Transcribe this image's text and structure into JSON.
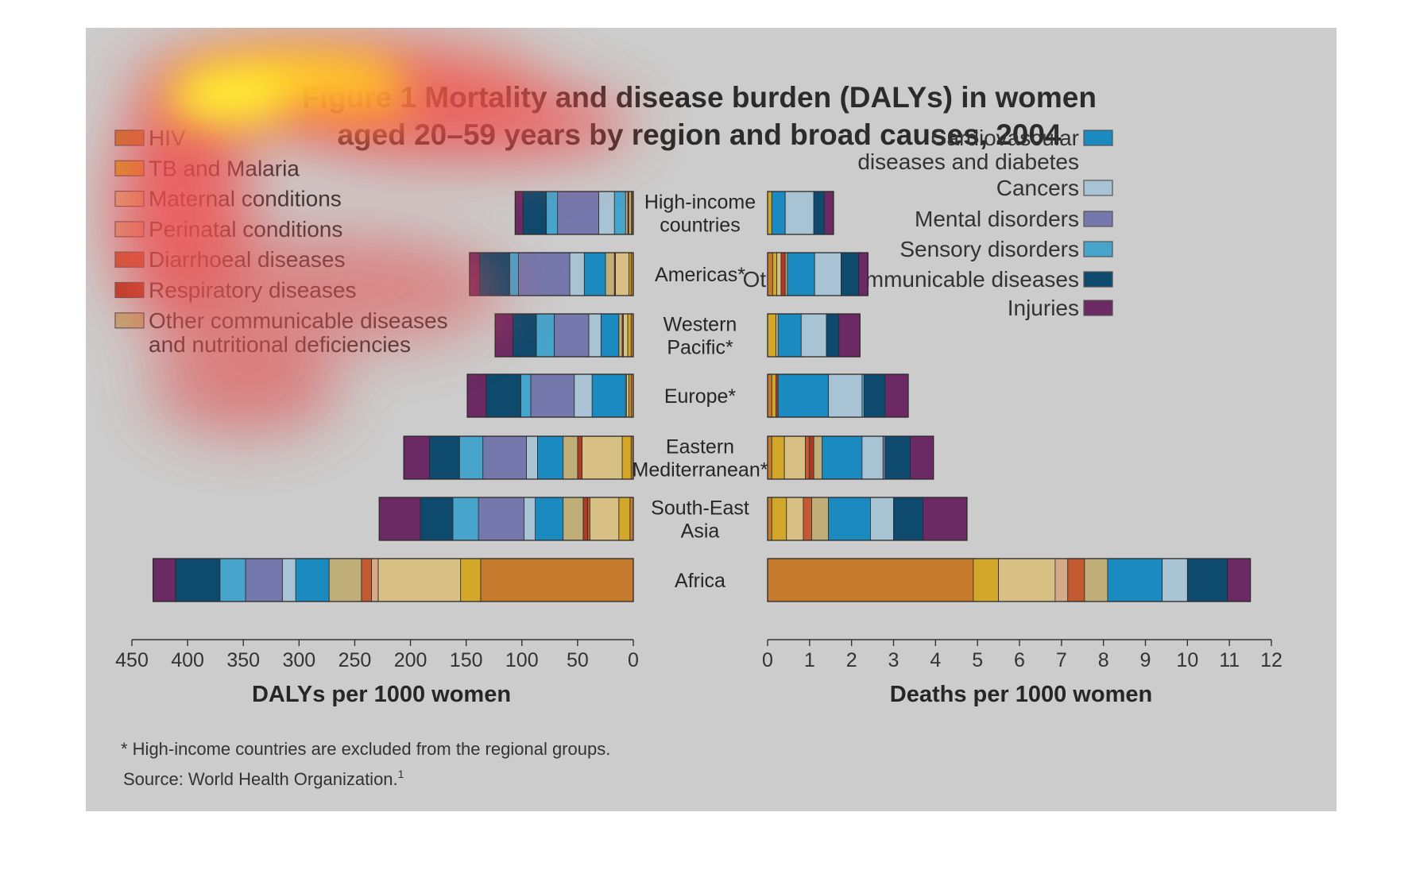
{
  "title_line1": "Figure 1 Mortality and disease burden (DALYs) in women",
  "title_line2": "aged 20–59 years by region and broad causes, 2004",
  "footnote": "* High-income countries are excluded from the regional groups.",
  "source": "Source: World Health Organization.",
  "source_sup": "1",
  "legend_left": [
    {
      "label": [
        "HIV"
      ],
      "color": "#c57a2e"
    },
    {
      "label": [
        "TB and Malaria"
      ],
      "color": "#d3a82a"
    },
    {
      "label": [
        "Maternal conditions"
      ],
      "color": "#d8bf84"
    },
    {
      "label": [
        "Perinatal conditions"
      ],
      "color": "#d4aa88"
    },
    {
      "label": [
        "Diarrhoeal diseases"
      ],
      "color": "#c45a32"
    },
    {
      "label": [
        "Respiratory diseases"
      ],
      "color": "#b03b22"
    },
    {
      "label": [
        "Other communicable diseases",
        "and nutritional deficiencies"
      ],
      "color": "#bfae78"
    }
  ],
  "legend_right": [
    {
      "label": [
        "Cardiovascular",
        "diseases and diabetes"
      ],
      "color": "#1a8ac0"
    },
    {
      "label": [
        "Cancers"
      ],
      "color": "#a8c3d3"
    },
    {
      "label": [
        "Mental disorders"
      ],
      "color": "#7478ad"
    },
    {
      "label": [
        "Sensory disorders"
      ],
      "color": "#47a4cb"
    },
    {
      "label": [
        "Other noncommunicable diseases"
      ],
      "color": "#0e4a6d"
    },
    {
      "label": [
        "Injuries"
      ],
      "color": "#6b2a63"
    }
  ],
  "chart_data": {
    "type": "bar",
    "orientation": "horizontal",
    "stacked": true,
    "layout": "back-to-back",
    "categories": [
      [
        "High-income",
        "countries"
      ],
      [
        "Americas*"
      ],
      [
        "Western",
        "Pacific*"
      ],
      [
        "Europe*"
      ],
      [
        "Eastern",
        "Mediterranean*"
      ],
      [
        "South-East",
        "Asia"
      ],
      [
        "Africa"
      ]
    ],
    "series_names": [
      "HIV",
      "TB and Malaria",
      "Maternal conditions",
      "Perinatal conditions",
      "Diarrhoeal diseases",
      "Respiratory diseases",
      "Other communicable diseases and nutritional deficiencies",
      "Cardiovascular diseases and diabetes",
      "Cancers",
      "Mental disorders",
      "Sensory disorders",
      "Other noncommunicable diseases",
      "Injuries"
    ],
    "panels": [
      {
        "xlabel": "DALYs per 1000 women",
        "xlim": [
          0,
          450
        ],
        "direction": "right-to-left",
        "ticks": [
          0,
          50,
          100,
          150,
          200,
          250,
          300,
          350,
          400,
          450
        ],
        "segments": [
          [
            {
              "series": "HIV",
              "value": 1
            },
            {
              "series": "TB and Malaria",
              "value": 1
            },
            {
              "series": "Maternal conditions",
              "value": 2
            },
            {
              "series": "Respiratory diseases",
              "value": 1
            },
            {
              "series": "Other communicable diseases and nutritional deficiencies",
              "value": 2
            },
            {
              "series": "Sensory disorders",
              "value": 10
            },
            {
              "series": "Cancers",
              "value": 14
            },
            {
              "series": "Mental disorders",
              "value": 37
            },
            {
              "series": "Sensory disorders",
              "value": 10
            },
            {
              "series": "Other noncommunicable diseases",
              "value": 21
            },
            {
              "series": "Injuries",
              "value": 7
            }
          ],
          [
            {
              "series": "HIV",
              "value": 2
            },
            {
              "series": "TB and Malaria",
              "value": 2
            },
            {
              "series": "Maternal conditions",
              "value": 12
            },
            {
              "series": "Respiratory diseases",
              "value": 1
            },
            {
              "series": "Other communicable diseases and nutritional deficiencies",
              "value": 8
            },
            {
              "series": "Cardiovascular diseases and diabetes",
              "value": 19
            },
            {
              "series": "Cancers",
              "value": 13
            },
            {
              "series": "Mental disorders",
              "value": 46
            },
            {
              "series": "Sensory disorders",
              "value": 8
            },
            {
              "series": "Other noncommunicable diseases",
              "value": 27
            },
            {
              "series": "Injuries",
              "value": 9
            }
          ],
          [
            {
              "series": "HIV",
              "value": 2
            },
            {
              "series": "TB and Malaria",
              "value": 3
            },
            {
              "series": "Maternal conditions",
              "value": 4
            },
            {
              "series": "Respiratory diseases",
              "value": 1
            },
            {
              "series": "Other communicable diseases and nutritional deficiencies",
              "value": 3
            },
            {
              "series": "Cardiovascular diseases and diabetes",
              "value": 16
            },
            {
              "series": "Cancers",
              "value": 11
            },
            {
              "series": "Mental disorders",
              "value": 31
            },
            {
              "series": "Sensory disorders",
              "value": 16
            },
            {
              "series": "Other noncommunicable diseases",
              "value": 21
            },
            {
              "series": "Injuries",
              "value": 16
            }
          ],
          [
            {
              "series": "HIV",
              "value": 2
            },
            {
              "series": "TB and Malaria",
              "value": 2
            },
            {
              "series": "Maternal conditions",
              "value": 2
            },
            {
              "series": "Other communicable diseases and nutritional deficiencies",
              "value": 1
            },
            {
              "series": "Cardiovascular diseases and diabetes",
              "value": 30
            },
            {
              "series": "Cancers",
              "value": 16
            },
            {
              "series": "Mental disorders",
              "value": 39
            },
            {
              "series": "Sensory disorders",
              "value": 9
            },
            {
              "series": "Other noncommunicable diseases",
              "value": 31
            },
            {
              "series": "Injuries",
              "value": 17
            }
          ],
          [
            {
              "series": "HIV",
              "value": 2
            },
            {
              "series": "TB and Malaria",
              "value": 8
            },
            {
              "series": "Maternal conditions",
              "value": 36
            },
            {
              "series": "Respiratory diseases",
              "value": 4
            },
            {
              "series": "Other communicable diseases and nutritional deficiencies",
              "value": 13
            },
            {
              "series": "Cardiovascular diseases and diabetes",
              "value": 23
            },
            {
              "series": "Cancers",
              "value": 10
            },
            {
              "series": "Mental disorders",
              "value": 39
            },
            {
              "series": "Sensory disorders",
              "value": 21
            },
            {
              "series": "Other noncommunicable diseases",
              "value": 27
            },
            {
              "series": "Injuries",
              "value": 23
            }
          ],
          [
            {
              "series": "HIV",
              "value": 3
            },
            {
              "series": "TB and Malaria",
              "value": 10
            },
            {
              "series": "Maternal conditions",
              "value": 26
            },
            {
              "series": "Diarrhoeal diseases",
              "value": 2
            },
            {
              "series": "Respiratory diseases",
              "value": 4
            },
            {
              "series": "Other communicable diseases and nutritional deficiencies",
              "value": 18
            },
            {
              "series": "Cardiovascular diseases and diabetes",
              "value": 25
            },
            {
              "series": "Cancers",
              "value": 10
            },
            {
              "series": "Mental disorders",
              "value": 41
            },
            {
              "series": "Sensory disorders",
              "value": 23
            },
            {
              "series": "Other noncommunicable diseases",
              "value": 29
            },
            {
              "series": "Injuries",
              "value": 37
            }
          ],
          [
            {
              "series": "HIV",
              "value": 137
            },
            {
              "series": "TB and Malaria",
              "value": 18
            },
            {
              "series": "Maternal conditions",
              "value": 74
            },
            {
              "series": "Perinatal conditions",
              "value": 6
            },
            {
              "series": "Diarrhoeal diseases",
              "value": 9
            },
            {
              "series": "Other communicable diseases and nutritional deficiencies",
              "value": 29
            },
            {
              "series": "Cardiovascular diseases and diabetes",
              "value": 30
            },
            {
              "series": "Cancers",
              "value": 12
            },
            {
              "series": "Mental disorders",
              "value": 33
            },
            {
              "series": "Sensory disorders",
              "value": 23
            },
            {
              "series": "Other noncommunicable diseases",
              "value": 40
            },
            {
              "series": "Injuries",
              "value": 20
            }
          ]
        ]
      },
      {
        "xlabel": "Deaths per 1000 women",
        "xlim": [
          0,
          12
        ],
        "direction": "left-to-right",
        "ticks": [
          0,
          1,
          2,
          3,
          4,
          5,
          6,
          7,
          8,
          9,
          10,
          11,
          12
        ],
        "segments": [
          [
            {
              "series": "TB and Malaria",
              "value": 0.1
            },
            {
              "series": "Cardiovascular diseases and diabetes",
              "value": 0.32
            },
            {
              "series": "Cancers",
              "value": 0.68
            },
            {
              "series": "Other noncommunicable diseases",
              "value": 0.25
            },
            {
              "series": "Injuries",
              "value": 0.22
            }
          ],
          [
            {
              "series": "HIV",
              "value": 0.12
            },
            {
              "series": "TB and Malaria",
              "value": 0.1
            },
            {
              "series": "Maternal conditions",
              "value": 0.1
            },
            {
              "series": "Respiratory diseases",
              "value": 0.1
            },
            {
              "series": "Other communicable diseases and nutritional deficiencies",
              "value": 0.05
            },
            {
              "series": "Cardiovascular diseases and diabetes",
              "value": 0.65
            },
            {
              "series": "Cancers",
              "value": 0.63
            },
            {
              "series": "Other noncommunicable diseases",
              "value": 0.42
            },
            {
              "series": "Injuries",
              "value": 0.22
            }
          ],
          [
            {
              "series": "TB and Malaria",
              "value": 0.2
            },
            {
              "series": "Maternal conditions",
              "value": 0.05
            },
            {
              "series": "Cardiovascular diseases and diabetes",
              "value": 0.55
            },
            {
              "series": "Cancers",
              "value": 0.6
            },
            {
              "series": "Other noncommunicable diseases",
              "value": 0.3
            },
            {
              "series": "Injuries",
              "value": 0.5
            }
          ],
          [
            {
              "series": "HIV",
              "value": 0.1
            },
            {
              "series": "TB and Malaria",
              "value": 0.1
            },
            {
              "series": "Respiratory diseases",
              "value": 0.05
            },
            {
              "series": "Cardiovascular diseases and diabetes",
              "value": 1.2
            },
            {
              "series": "Cancers",
              "value": 0.8
            },
            {
              "series": "Sensory disorders",
              "value": 0.05
            },
            {
              "series": "Other noncommunicable diseases",
              "value": 0.5
            },
            {
              "series": "Injuries",
              "value": 0.55
            }
          ],
          [
            {
              "series": "HIV",
              "value": 0.1
            },
            {
              "series": "TB and Malaria",
              "value": 0.3
            },
            {
              "series": "Maternal conditions",
              "value": 0.5
            },
            {
              "series": "Diarrhoeal diseases",
              "value": 0.1
            },
            {
              "series": "Respiratory diseases",
              "value": 0.1
            },
            {
              "series": "Other communicable diseases and nutritional deficiencies",
              "value": 0.2
            },
            {
              "series": "Cardiovascular diseases and diabetes",
              "value": 0.95
            },
            {
              "series": "Cancers",
              "value": 0.5
            },
            {
              "series": "Mental disorders",
              "value": 0.05
            },
            {
              "series": "Other noncommunicable diseases",
              "value": 0.6
            },
            {
              "series": "Injuries",
              "value": 0.55
            }
          ],
          [
            {
              "series": "HIV",
              "value": 0.1
            },
            {
              "series": "TB and Malaria",
              "value": 0.35
            },
            {
              "series": "Maternal conditions",
              "value": 0.4
            },
            {
              "series": "Diarrhoeal diseases",
              "value": 0.2
            },
            {
              "series": "Other communicable diseases and nutritional deficiencies",
              "value": 0.4
            },
            {
              "series": "Cardiovascular diseases and diabetes",
              "value": 1.0
            },
            {
              "series": "Cancers",
              "value": 0.55
            },
            {
              "series": "Other noncommunicable diseases",
              "value": 0.7
            },
            {
              "series": "Injuries",
              "value": 1.05
            }
          ],
          [
            {
              "series": "HIV",
              "value": 4.9
            },
            {
              "series": "TB and Malaria",
              "value": 0.6
            },
            {
              "series": "Maternal conditions",
              "value": 1.35
            },
            {
              "series": "Perinatal conditions",
              "value": 0.3
            },
            {
              "series": "Diarrhoeal diseases",
              "value": 0.4
            },
            {
              "series": "Other communicable diseases and nutritional deficiencies",
              "value": 0.55
            },
            {
              "series": "Cardiovascular diseases and diabetes",
              "value": 1.3
            },
            {
              "series": "Cancers",
              "value": 0.6
            },
            {
              "series": "Other noncommunicable diseases",
              "value": 0.95
            },
            {
              "series": "Injuries",
              "value": 0.55
            }
          ]
        ]
      }
    ]
  }
}
